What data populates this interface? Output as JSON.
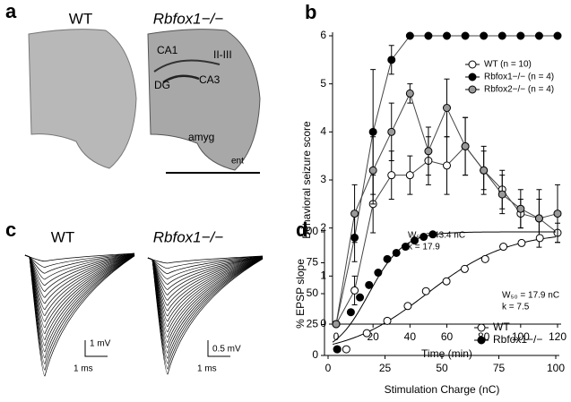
{
  "panels": {
    "a": {
      "letter": "a",
      "wt": "WT",
      "ko": "Rbfox1−/−",
      "regions": [
        "CA1",
        "II-III",
        "DG",
        "CA3",
        "amyg",
        "ent"
      ]
    },
    "c": {
      "letter": "c",
      "wt": "WT",
      "ko": "Rbfox1−/−",
      "wt_scale_v": "1 mV",
      "wt_scale_t": "1 ms",
      "ko_scale_v": "0.5 mV",
      "ko_scale_t": "1 ms"
    }
  },
  "chart_data": [
    {
      "type": "line",
      "letter": "b",
      "x_label": "Time (min)",
      "y_label": "Behavioral seizure score",
      "x": [
        0,
        10,
        20,
        30,
        40,
        50,
        60,
        70,
        80,
        90,
        100,
        110,
        120
      ],
      "xlim": [
        0,
        120
      ],
      "xticks": [
        0,
        20,
        40,
        60,
        80,
        100,
        120
      ],
      "ylim": [
        0,
        6
      ],
      "yticks": [
        0,
        1,
        2,
        3,
        4,
        5,
        6
      ],
      "series": [
        {
          "name": "WT (n = 10)",
          "color": "#ffffff",
          "values": [
            0,
            0.7,
            2.5,
            3.1,
            3.1,
            3.4,
            3.3,
            3.7,
            3.2,
            2.8,
            2.3,
            2.2,
            1.9
          ],
          "errors": [
            0,
            0.3,
            0.6,
            0.5,
            0.4,
            0.5,
            0.6,
            0.6,
            0.4,
            0.4,
            0.3,
            0.4,
            0.2
          ]
        },
        {
          "name": "Rbfox1−/− (n = 4)",
          "color": "#000000",
          "values": [
            0,
            1.8,
            4.0,
            5.5,
            6,
            6,
            6,
            6,
            6,
            6,
            6,
            6,
            6
          ],
          "errors": [
            0,
            0.5,
            1.3,
            0.3,
            0,
            0,
            0,
            0,
            0,
            0,
            0,
            0,
            0
          ]
        },
        {
          "name": "Rbfox2−/− (n = 4)",
          "color": "#999999",
          "values": [
            0,
            2.3,
            3.2,
            4.0,
            4.8,
            3.6,
            4.5,
            3.7,
            3.2,
            2.7,
            2.4,
            2.2,
            2.3
          ],
          "errors": [
            0,
            0.6,
            0.7,
            0.6,
            0.2,
            0.5,
            0.6,
            0.6,
            0.5,
            0.4,
            0.4,
            0.6,
            0.6
          ]
        }
      ]
    },
    {
      "type": "scatter",
      "letter": "d",
      "x_label": "Stimulation Charge (nC)",
      "y_label": "% EPSP slope",
      "xlim": [
        0,
        100
      ],
      "xticks": [
        0,
        25,
        50,
        75,
        100
      ],
      "ylim": [
        0,
        100
      ],
      "yticks": [
        0,
        25,
        50,
        75,
        100
      ],
      "series": [
        {
          "name": "WT",
          "color": "#ffffff",
          "x": [
            4,
            8,
            17,
            26,
            35,
            43,
            52,
            60,
            69,
            77,
            85,
            93
          ],
          "values": [
            5,
            5,
            18,
            28,
            40,
            52,
            60,
            70,
            78,
            88,
            91,
            95
          ],
          "fit_w50": 43.4,
          "fit_k": 17.9,
          "annotation": [
            "W₅₀ = 43.4 nC",
            "k = 17.9"
          ]
        },
        {
          "name": "Rbfox1−/−",
          "color": "#000000",
          "x": [
            4,
            10,
            14,
            18,
            22,
            26,
            30,
            34,
            38,
            42,
            46
          ],
          "values": [
            5,
            35,
            47,
            57,
            67,
            78,
            83,
            88,
            93,
            96,
            98
          ],
          "fit_w50": 17.9,
          "fit_k": 7.5,
          "annotation": [
            "W₅₀ = 17.9 nC",
            "k = 7.5"
          ]
        }
      ]
    }
  ]
}
